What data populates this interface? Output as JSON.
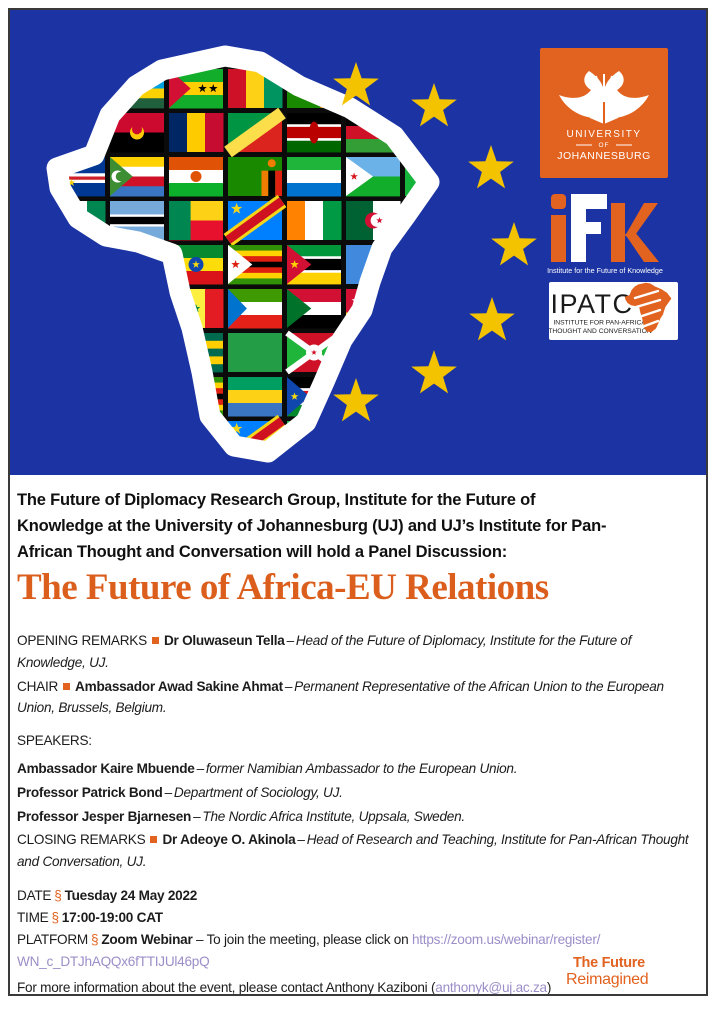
{
  "banner": {
    "bg": "#1C34A3",
    "star_color": "#F3C300",
    "outline_color": "#FFFFFF",
    "gutter_color": "#0b0b0b",
    "star_count": 7,
    "uj_logo": {
      "bg": "#E2621F",
      "line1": "UNIVERSITY",
      "line2": "OF",
      "line3": "JOHANNESBURG"
    },
    "ifk_logo": {
      "i": "i",
      "f": "F",
      "k": "K",
      "orange": "#E2621F",
      "tagline": "Institute for the Future of Knowledge"
    },
    "ipatc_logo": {
      "acronym": "IPATC",
      "line1": "INSTITUTE FOR PAN-AFRICAN",
      "line2": "THOUGHT AND CONVERSATION",
      "orange": "#E2621F"
    },
    "flags": {
      "liberia": [
        [
          "h",
          [
            "#BF0A30",
            "#fff",
            "#BF0A30",
            "#fff",
            "#BF0A30",
            "#fff"
          ]
        ],
        [
          "canton",
          "#002868",
          0.42,
          0.5
        ],
        [
          "star",
          "#fff",
          0.2,
          0.24,
          5
        ]
      ],
      "rwanda": [
        [
          "hw",
          [
            [
              "#00A1DE",
              2
            ],
            [
              "#FAD201",
              1
            ],
            [
              "#20603D",
              1
            ]
          ]
        ],
        [
          "disc",
          "#FAD201",
          0.85,
          0.2,
          4.5
        ]
      ],
      "saotome": [
        [
          "h",
          [
            "#12AD2B",
            "#FFCE00",
            "#12AD2B"
          ]
        ],
        [
          "tri",
          "#D21034",
          0.4
        ],
        [
          "star",
          "#000",
          0.62,
          0.5,
          4.5
        ],
        [
          "star",
          "#000",
          0.82,
          0.5,
          4.5
        ]
      ],
      "ghana": [
        [
          "h",
          [
            "#CE1126",
            "#FCD116",
            "#006B3F"
          ]
        ],
        [
          "star",
          "#000",
          0.5,
          0.5,
          6
        ]
      ],
      "angola": [
        [
          "h",
          [
            "#CC092F",
            "#000"
          ]
        ],
        [
          "disc",
          "#FFCB00",
          0.5,
          0.5,
          7
        ],
        [
          "disc",
          "#CC092F",
          0.5,
          0.42,
          5
        ],
        [
          "star",
          "#FFCB00",
          0.55,
          0.58,
          3
        ]
      ],
      "chad": [
        [
          "v",
          [
            "#002664",
            "#FECB00",
            "#C60C30"
          ]
        ]
      ],
      "congo": [
        [
          "fill",
          "#009543"
        ],
        [
          "rtri",
          "#DC241F"
        ],
        [
          "band",
          "#FBDE4A",
          13
        ]
      ],
      "mali": [
        [
          "v",
          [
            "#14B53A",
            "#FCD116",
            "#CE1126"
          ]
        ]
      ],
      "capeverde": [
        [
          "hw",
          [
            [
              "#003893",
              5
            ],
            [
              "#fff",
              1
            ],
            [
              "#CF2027",
              1
            ],
            [
              "#fff",
              1
            ],
            [
              "#003893",
              4
            ]
          ]
        ],
        [
          "star",
          "#F7D116",
          0.38,
          0.66,
          4
        ]
      ],
      "comoros": [
        [
          "h",
          [
            "#FFD100",
            "#fff",
            "#CE1126",
            "#3A75C4"
          ]
        ],
        [
          "tri",
          "#3D8E33",
          0.42
        ],
        [
          "cres",
          "#fff",
          "#3D8E33",
          0.14,
          0.5,
          6
        ]
      ],
      "niger": [
        [
          "h",
          [
            "#E05206",
            "#fff",
            "#0DB02B"
          ]
        ],
        [
          "disc",
          "#E05206",
          0.5,
          0.5,
          5.5
        ]
      ],
      "zambia": [
        [
          "fill",
          "#198A00"
        ],
        [
          "rect",
          "#EF7D00",
          0.62,
          0.35,
          0.127,
          0.65
        ],
        [
          "rect",
          "#000",
          0.747,
          0.35,
          0.127,
          0.65
        ],
        [
          "rect",
          "#DE2010",
          0.874,
          0.35,
          0.126,
          0.65
        ],
        [
          "disc",
          "#EF7D00",
          0.81,
          0.16,
          4
        ]
      ],
      "botswana": [
        [
          "hw",
          [
            [
              "#75AADB",
              4
            ],
            [
              "#fff",
              0.7
            ],
            [
              "#000",
              2.2
            ],
            [
              "#fff",
              0.7
            ],
            [
              "#75AADB",
              4
            ]
          ]
        ]
      ],
      "ethiopia": [
        [
          "h",
          [
            "#078930",
            "#FCDD09",
            "#DA121A"
          ]
        ],
        [
          "disc",
          "#0F47AF",
          0.5,
          0.5,
          7.5
        ],
        [
          "star",
          "#FCDD09",
          0.5,
          0.5,
          4
        ]
      ],
      "drc": [
        [
          "fill",
          "#007FFF"
        ],
        [
          "band",
          "#F7D618",
          15
        ],
        [
          "band",
          "#CE1021",
          9
        ],
        [
          "star",
          "#F7D618",
          0.16,
          0.2,
          6
        ]
      ],
      "ivorycoast": [
        [
          "v",
          [
            "#FF8200",
            "#fff",
            "#009A44"
          ]
        ]
      ],
      "algeria": [
        [
          "v",
          [
            "#006233",
            "#fff"
          ]
        ],
        [
          "cres",
          "#D21034",
          "#fff",
          0.5,
          0.5,
          8
        ],
        [
          "star",
          "#D21034",
          0.62,
          0.5,
          3.5
        ]
      ],
      "cameroon": [
        [
          "v",
          [
            "#007A5E",
            "#CE1126",
            "#FCD116"
          ]
        ],
        [
          "star",
          "#FCD116",
          0.5,
          0.5,
          4.5
        ]
      ],
      "senegal": [
        [
          "v",
          [
            "#00853F",
            "#FDEF42",
            "#E31B23"
          ]
        ],
        [
          "star",
          "#00853F",
          0.5,
          0.5,
          4.5
        ]
      ],
      "zimbabwe": [
        [
          "hw",
          [
            [
              "#319208",
              1
            ],
            [
              "#FFD200",
              1
            ],
            [
              "#DE2010",
              1
            ],
            [
              "#000",
              1
            ],
            [
              "#DE2010",
              1
            ],
            [
              "#FFD200",
              1
            ],
            [
              "#319208",
              1
            ]
          ]
        ],
        [
          "tri",
          "#fff",
          0.45
        ],
        [
          "star",
          "#DE2010",
          0.14,
          0.5,
          4.5
        ]
      ],
      "mozambique": [
        [
          "hw",
          [
            [
              "#009639",
              1.3
            ],
            [
              "#fff",
              0.3
            ],
            [
              "#000",
              1.3
            ],
            [
              "#fff",
              0.3
            ],
            [
              "#FFD100",
              1.3
            ]
          ]
        ],
        [
          "tri",
          "#D21034",
          0.45
        ],
        [
          "star",
          "#FFD100",
          0.14,
          0.5,
          4.5
        ]
      ],
      "kenya": [
        [
          "hw",
          [
            [
              "#000",
              1.3
            ],
            [
              "#fff",
              0.3
            ],
            [
              "#BB0000",
              1.3
            ],
            [
              "#fff",
              0.3
            ],
            [
              "#006600",
              1.3
            ]
          ]
        ],
        [
          "ellipse",
          "#BB0000",
          0.5,
          0.5,
          5,
          11
        ]
      ],
      "tanzania": [
        [
          "fill",
          "#1EB53A"
        ],
        [
          "rtri",
          "#00A3DD"
        ],
        [
          "band",
          "#FCD116",
          14
        ],
        [
          "band",
          "#000",
          9
        ]
      ],
      "burundi": [
        [
          "fill",
          "#CE1126"
        ],
        [
          "tri",
          "#1EB53A",
          0.5
        ],
        [
          "tri2",
          "#1EB53A",
          0.5
        ],
        [
          "xx",
          "#fff",
          6
        ],
        [
          "disc",
          "#fff",
          0.5,
          0.5,
          8
        ],
        [
          "star",
          "#CE1126",
          0.5,
          0.5,
          3
        ]
      ],
      "eritrea": [
        [
          "hw",
          [
            [
              "#12AD2B",
              1
            ],
            [
              "#4189DD",
              1
            ]
          ]
        ],
        [
          "tri",
          "#E4002B",
          1.0
        ],
        [
          "disc",
          "#FFC726",
          0.3,
          0.5,
          5
        ]
      ],
      "eqguinea": [
        [
          "h",
          [
            "#3E9A00",
            "#fff",
            "#E32118"
          ]
        ],
        [
          "tri",
          "#0073CE",
          0.35
        ]
      ],
      "sudan": [
        [
          "h",
          [
            "#D21034",
            "#fff",
            "#000"
          ]
        ],
        [
          "tri",
          "#007229",
          0.45
        ]
      ],
      "southsudan": [
        [
          "hw",
          [
            [
              "#000",
              1.2
            ],
            [
              "#fff",
              0.3
            ],
            [
              "#DA121A",
              1.2
            ],
            [
              "#fff",
              0.3
            ],
            [
              "#078930",
              1.2
            ]
          ]
        ],
        [
          "tri",
          "#0F47AF",
          0.42
        ],
        [
          "star",
          "#FCDD09",
          0.14,
          0.5,
          4
        ]
      ],
      "guinea": [
        [
          "v",
          [
            "#CE1126",
            "#FCD116",
            "#009460"
          ]
        ]
      ],
      "gabon": [
        [
          "h",
          [
            "#009E60",
            "#FCD116",
            "#3A75C4"
          ]
        ]
      ],
      "nigeria": [
        [
          "v",
          [
            "#008751",
            "#fff",
            "#008751"
          ]
        ]
      ],
      "togo": [
        [
          "hw",
          [
            [
              "#006A4E",
              1
            ],
            [
              "#FFCE00",
              1
            ],
            [
              "#006A4E",
              1
            ],
            [
              "#FFCE00",
              1
            ],
            [
              "#006A4E",
              1
            ]
          ]
        ],
        [
          "canton",
          "#D21034",
          0.38,
          0.6
        ],
        [
          "star",
          "#fff",
          0.19,
          0.3,
          5
        ]
      ],
      "uganda": [
        [
          "h",
          [
            "#000",
            "#FCDC04",
            "#D90000",
            "#000",
            "#FCDC04",
            "#D90000"
          ]
        ],
        [
          "disc",
          "#fff",
          0.5,
          0.5,
          6
        ]
      ],
      "malawi": [
        [
          "h",
          [
            "#000",
            "#CE1126",
            "#339E35"
          ]
        ],
        [
          "disc",
          "#CE1126",
          0.5,
          0.16,
          5
        ]
      ],
      "somalia": [
        [
          "fill",
          "#4189DD"
        ],
        [
          "star",
          "#fff",
          0.5,
          0.5,
          7
        ]
      ],
      "djibouti": [
        [
          "hw",
          [
            [
              "#6AB2E7",
              1
            ],
            [
              "#12AD2B",
              1
            ]
          ]
        ],
        [
          "tri",
          "#fff",
          0.5
        ],
        [
          "star",
          "#D7141A",
          0.15,
          0.5,
          4
        ]
      ],
      "egypt": [
        [
          "h",
          [
            "#CE1126",
            "#fff",
            "#000"
          ]
        ],
        [
          "disc",
          "#C09300",
          0.5,
          0.5,
          4
        ]
      ],
      "tunisia": [
        [
          "fill",
          "#E70013"
        ],
        [
          "disc",
          "#fff",
          0.5,
          0.5,
          8
        ],
        [
          "cres",
          "#E70013",
          "#fff",
          0.5,
          0.5,
          5.5
        ],
        [
          "star",
          "#E70013",
          0.58,
          0.5,
          2.5
        ]
      ],
      "morocco": [
        [
          "fill",
          "#C1272D"
        ],
        [
          "star",
          "#006233",
          0.5,
          0.5,
          7
        ]
      ],
      "libya_green": [
        [
          "fill",
          "#239E46"
        ]
      ],
      "benin": [
        [
          "hw",
          [
            [
              "#FCD116",
              1
            ],
            [
              "#E8112D",
              1
            ]
          ]
        ],
        [
          "rect",
          "#008751",
          0,
          0,
          0.4,
          1
        ]
      ],
      "sierraleone": [
        [
          "h",
          [
            "#1EB53A",
            "#fff",
            "#0073CE"
          ]
        ]
      ]
    },
    "grid": [
      [
        "liberia",
        "rwanda",
        "saotome",
        "guinea",
        "zambia",
        "uganda",
        "sudan"
      ],
      [
        "ghana",
        "angola",
        "chad",
        "congo",
        "kenya",
        "malawi",
        "nigeria"
      ],
      [
        "capeverde",
        "comoros",
        "niger",
        "zambia",
        "sierraleone",
        "djibouti",
        "mali"
      ],
      [
        "nigeria",
        "botswana",
        "benin",
        "drc",
        "ivorycoast",
        "algeria",
        "cameroon"
      ],
      [
        "guinea",
        "senegal",
        "ethiopia",
        "zimbabwe",
        "mozambique",
        "somalia",
        "uganda"
      ],
      [
        "mali",
        "tanzania",
        "senegal",
        "eqguinea",
        "sudan",
        "togo",
        "kenya"
      ],
      [
        "egypt",
        "malawi",
        "togo",
        "libya_green",
        "burundi",
        "niger",
        "chad"
      ],
      [
        "capeverde",
        "uganda",
        "zimbabwe",
        "gabon",
        "southsudan",
        "rwanda",
        "morocco"
      ],
      [
        "somalia",
        "comoros",
        "eritrea",
        "drc",
        "tanzania",
        "egypt",
        "tunisia"
      ]
    ]
  },
  "content": {
    "intro": "The Future of Diplomacy Research Group, Institute for the Future of\nKnowledge at the University of Johannesburg (UJ) and UJ’s Institute for Pan-\nAfrican Thought and Conversation will hold a Panel Discussion:",
    "title": "The Future of Africa-EU Relations",
    "dash": "–",
    "roles": [
      {
        "label": "OPENING REMARKS",
        "name": "Dr Oluwaseun Tella",
        "desc": "Head of the Future of Diplomacy, Institute for the Future of Knowledge, UJ."
      },
      {
        "label": "CHAIR",
        "name": "Ambassador Awad Sakine Ahmat",
        "desc": "Permanent Representative of the African Union to the European Union, Brussels, Belgium."
      }
    ],
    "speakers_heading": "SPEAKERS:",
    "speakers": [
      {
        "name": "Ambassador Kaire Mbuende",
        "desc": "former Namibian Ambassador to the European Union."
      },
      {
        "name": "Professor Patrick Bond",
        "desc": "Department of Sociology, UJ."
      },
      {
        "name": "Professor Jesper Bjarnesen",
        "desc": "The Nordic Africa Institute, Uppsala, Sweden."
      }
    ],
    "closing": {
      "label": "CLOSING REMARKS",
      "name": "Dr Adeoye O. Akinola",
      "desc": "Head of Research and Teaching, Institute for Pan-African Thought and Conversation, UJ."
    },
    "details": [
      {
        "label": "DATE",
        "sep": "§",
        "value": "Tuesday 24 May 2022"
      },
      {
        "label": "TIME",
        "sep": "§",
        "value": "17:00-19:00 CAT"
      },
      {
        "label": "PLATFORM",
        "sep": "§",
        "value": "Zoom Webinar",
        "after": " – To join the meeting, please click on ",
        "link": "https://zoom.us/webinar/register/\nWN_c_DTJhAQQx6fTTIJUl46pQ"
      }
    ],
    "contact": {
      "before": "For more information about the event, please contact Anthony Kaziboni (",
      "email": "anthonyk@uj.ac.za",
      "after": ")"
    },
    "slogan": {
      "line1": "The Future",
      "line2": "Reimagined"
    }
  }
}
